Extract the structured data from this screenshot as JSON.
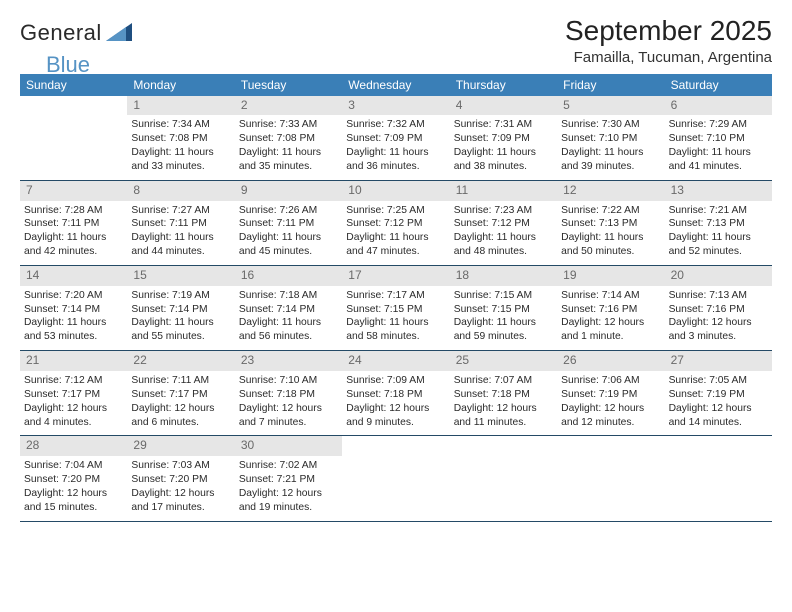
{
  "logo": {
    "word1": "General",
    "word2": "Blue"
  },
  "title": "September 2025",
  "location": "Famailla, Tucuman, Argentina",
  "colors": {
    "header_blue": "#3a7fb7",
    "daynum_bg": "#e6e6e6",
    "daynum_text": "#6a6a6a",
    "row_divider": "#244a66",
    "logo_blue": "#5693c4",
    "background": "#ffffff",
    "text": "#2a2a2a"
  },
  "days_of_week": [
    "Sunday",
    "Monday",
    "Tuesday",
    "Wednesday",
    "Thursday",
    "Friday",
    "Saturday"
  ],
  "weeks": [
    [
      null,
      {
        "num": "1",
        "sunrise": "Sunrise: 7:34 AM",
        "sunset": "Sunset: 7:08 PM",
        "daylight": "Daylight: 11 hours and 33 minutes."
      },
      {
        "num": "2",
        "sunrise": "Sunrise: 7:33 AM",
        "sunset": "Sunset: 7:08 PM",
        "daylight": "Daylight: 11 hours and 35 minutes."
      },
      {
        "num": "3",
        "sunrise": "Sunrise: 7:32 AM",
        "sunset": "Sunset: 7:09 PM",
        "daylight": "Daylight: 11 hours and 36 minutes."
      },
      {
        "num": "4",
        "sunrise": "Sunrise: 7:31 AM",
        "sunset": "Sunset: 7:09 PM",
        "daylight": "Daylight: 11 hours and 38 minutes."
      },
      {
        "num": "5",
        "sunrise": "Sunrise: 7:30 AM",
        "sunset": "Sunset: 7:10 PM",
        "daylight": "Daylight: 11 hours and 39 minutes."
      },
      {
        "num": "6",
        "sunrise": "Sunrise: 7:29 AM",
        "sunset": "Sunset: 7:10 PM",
        "daylight": "Daylight: 11 hours and 41 minutes."
      }
    ],
    [
      {
        "num": "7",
        "sunrise": "Sunrise: 7:28 AM",
        "sunset": "Sunset: 7:11 PM",
        "daylight": "Daylight: 11 hours and 42 minutes."
      },
      {
        "num": "8",
        "sunrise": "Sunrise: 7:27 AM",
        "sunset": "Sunset: 7:11 PM",
        "daylight": "Daylight: 11 hours and 44 minutes."
      },
      {
        "num": "9",
        "sunrise": "Sunrise: 7:26 AM",
        "sunset": "Sunset: 7:11 PM",
        "daylight": "Daylight: 11 hours and 45 minutes."
      },
      {
        "num": "10",
        "sunrise": "Sunrise: 7:25 AM",
        "sunset": "Sunset: 7:12 PM",
        "daylight": "Daylight: 11 hours and 47 minutes."
      },
      {
        "num": "11",
        "sunrise": "Sunrise: 7:23 AM",
        "sunset": "Sunset: 7:12 PM",
        "daylight": "Daylight: 11 hours and 48 minutes."
      },
      {
        "num": "12",
        "sunrise": "Sunrise: 7:22 AM",
        "sunset": "Sunset: 7:13 PM",
        "daylight": "Daylight: 11 hours and 50 minutes."
      },
      {
        "num": "13",
        "sunrise": "Sunrise: 7:21 AM",
        "sunset": "Sunset: 7:13 PM",
        "daylight": "Daylight: 11 hours and 52 minutes."
      }
    ],
    [
      {
        "num": "14",
        "sunrise": "Sunrise: 7:20 AM",
        "sunset": "Sunset: 7:14 PM",
        "daylight": "Daylight: 11 hours and 53 minutes."
      },
      {
        "num": "15",
        "sunrise": "Sunrise: 7:19 AM",
        "sunset": "Sunset: 7:14 PM",
        "daylight": "Daylight: 11 hours and 55 minutes."
      },
      {
        "num": "16",
        "sunrise": "Sunrise: 7:18 AM",
        "sunset": "Sunset: 7:14 PM",
        "daylight": "Daylight: 11 hours and 56 minutes."
      },
      {
        "num": "17",
        "sunrise": "Sunrise: 7:17 AM",
        "sunset": "Sunset: 7:15 PM",
        "daylight": "Daylight: 11 hours and 58 minutes."
      },
      {
        "num": "18",
        "sunrise": "Sunrise: 7:15 AM",
        "sunset": "Sunset: 7:15 PM",
        "daylight": "Daylight: 11 hours and 59 minutes."
      },
      {
        "num": "19",
        "sunrise": "Sunrise: 7:14 AM",
        "sunset": "Sunset: 7:16 PM",
        "daylight": "Daylight: 12 hours and 1 minute."
      },
      {
        "num": "20",
        "sunrise": "Sunrise: 7:13 AM",
        "sunset": "Sunset: 7:16 PM",
        "daylight": "Daylight: 12 hours and 3 minutes."
      }
    ],
    [
      {
        "num": "21",
        "sunrise": "Sunrise: 7:12 AM",
        "sunset": "Sunset: 7:17 PM",
        "daylight": "Daylight: 12 hours and 4 minutes."
      },
      {
        "num": "22",
        "sunrise": "Sunrise: 7:11 AM",
        "sunset": "Sunset: 7:17 PM",
        "daylight": "Daylight: 12 hours and 6 minutes."
      },
      {
        "num": "23",
        "sunrise": "Sunrise: 7:10 AM",
        "sunset": "Sunset: 7:18 PM",
        "daylight": "Daylight: 12 hours and 7 minutes."
      },
      {
        "num": "24",
        "sunrise": "Sunrise: 7:09 AM",
        "sunset": "Sunset: 7:18 PM",
        "daylight": "Daylight: 12 hours and 9 minutes."
      },
      {
        "num": "25",
        "sunrise": "Sunrise: 7:07 AM",
        "sunset": "Sunset: 7:18 PM",
        "daylight": "Daylight: 12 hours and 11 minutes."
      },
      {
        "num": "26",
        "sunrise": "Sunrise: 7:06 AM",
        "sunset": "Sunset: 7:19 PM",
        "daylight": "Daylight: 12 hours and 12 minutes."
      },
      {
        "num": "27",
        "sunrise": "Sunrise: 7:05 AM",
        "sunset": "Sunset: 7:19 PM",
        "daylight": "Daylight: 12 hours and 14 minutes."
      }
    ],
    [
      {
        "num": "28",
        "sunrise": "Sunrise: 7:04 AM",
        "sunset": "Sunset: 7:20 PM",
        "daylight": "Daylight: 12 hours and 15 minutes."
      },
      {
        "num": "29",
        "sunrise": "Sunrise: 7:03 AM",
        "sunset": "Sunset: 7:20 PM",
        "daylight": "Daylight: 12 hours and 17 minutes."
      },
      {
        "num": "30",
        "sunrise": "Sunrise: 7:02 AM",
        "sunset": "Sunset: 7:21 PM",
        "daylight": "Daylight: 12 hours and 19 minutes."
      },
      null,
      null,
      null,
      null
    ]
  ]
}
